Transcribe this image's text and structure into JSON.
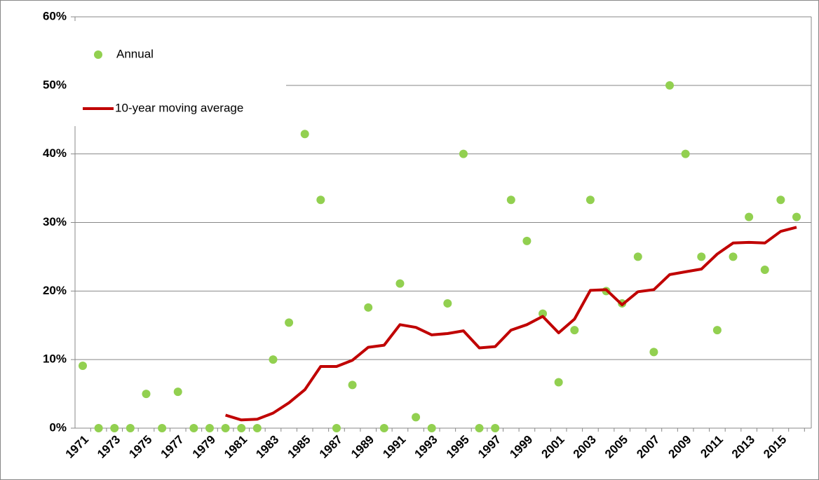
{
  "chart_data": {
    "type": "line",
    "categories": [
      "1971",
      null,
      "1973",
      null,
      "1975",
      null,
      "1977",
      null,
      "1979",
      null,
      "1981",
      null,
      "1983",
      null,
      "1985",
      null,
      "1987",
      null,
      "1989",
      null,
      "1991",
      null,
      "1993",
      null,
      "1995",
      null,
      "1997",
      null,
      "1999",
      null,
      "2001",
      null,
      "2003",
      null,
      "2005",
      null,
      "2007",
      null,
      "2009",
      null,
      "2011",
      null,
      "2013",
      null,
      "2015",
      null
    ],
    "series": [
      {
        "name": "Annual",
        "color": "#92d050",
        "marker": "dot",
        "values": [
          9.1,
          0,
          0,
          0,
          5.0,
          0,
          5.3,
          0,
          0,
          0,
          0,
          0,
          10,
          15.4,
          42.9,
          33.3,
          0,
          6.3,
          17.6,
          0,
          21.1,
          1.6,
          0,
          18.2,
          40,
          0,
          0,
          33.3,
          27.3,
          16.7,
          6.7,
          14.3,
          33.3,
          20,
          18.2,
          25,
          11.1,
          50,
          40,
          25,
          14.3,
          25,
          30.8,
          23.1,
          33.3,
          30.8
        ]
      },
      {
        "name": "10-year moving average",
        "color": "#c00000",
        "marker": "line",
        "values": [
          null,
          null,
          null,
          null,
          null,
          null,
          null,
          null,
          null,
          1.9,
          1.2,
          1.3,
          2.2,
          3.7,
          5.6,
          9.0,
          9.0,
          9.9,
          11.8,
          12.1,
          15.1,
          14.7,
          13.6,
          13.8,
          14.2,
          11.7,
          11.9,
          14.3,
          15.1,
          16.3,
          13.9,
          15.9,
          20.1,
          20.2,
          18.0,
          19.9,
          20.2,
          22.4,
          22.8,
          23.2,
          25.4,
          27.0,
          27.1,
          27.0,
          28.7,
          29.3
        ]
      }
    ],
    "ylim": [
      0,
      60
    ],
    "yticks": [
      {
        "value": 0,
        "label": "0%"
      },
      {
        "value": 10,
        "label": "10%"
      },
      {
        "value": 20,
        "label": "20%"
      },
      {
        "value": 30,
        "label": "30%"
      },
      {
        "value": 40,
        "label": "40%"
      },
      {
        "value": 50,
        "label": "50%"
      },
      {
        "value": 60,
        "label": "60%"
      }
    ],
    "grid": true,
    "legend": "upper-left"
  }
}
